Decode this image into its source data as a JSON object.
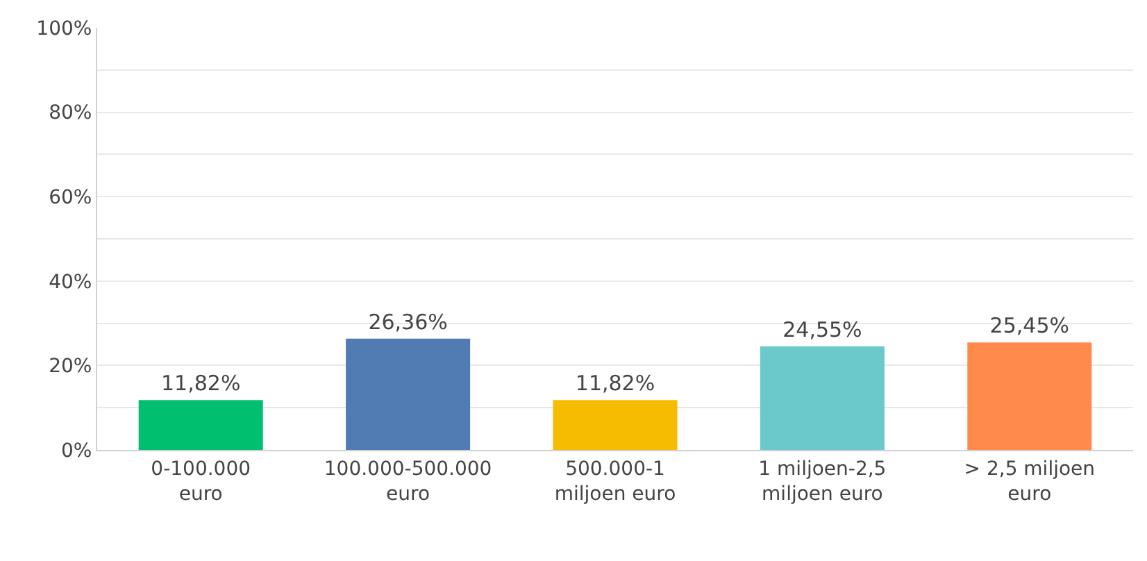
{
  "chart_data": {
    "type": "bar",
    "categories": [
      "0-100.000 euro",
      "100.000-500.000 euro",
      "500.000-1 miljoen euro",
      "1 miljoen-2,5 miljoen euro",
      "> 2,5 miljoen euro"
    ],
    "values": [
      11.82,
      26.36,
      11.82,
      24.55,
      25.45
    ],
    "colors": [
      "#00bf6f",
      "#507bb3",
      "#f6bd00",
      "#6bc8cb",
      "#ff8a4c"
    ],
    "value_labels": [
      "11,82%",
      "26,36%",
      "11,82%",
      "24,55%",
      "25,45%"
    ],
    "ylim": [
      0,
      100
    ],
    "yticks": [
      {
        "value": 0,
        "label": "0%"
      },
      {
        "value": 10,
        "label": null
      },
      {
        "value": 20,
        "label": "20%"
      },
      {
        "value": 30,
        "label": null
      },
      {
        "value": 40,
        "label": "40%"
      },
      {
        "value": 50,
        "label": null
      },
      {
        "value": 60,
        "label": "60%"
      },
      {
        "value": 70,
        "label": null
      },
      {
        "value": 80,
        "label": "80%"
      },
      {
        "value": 90,
        "label": null
      },
      {
        "value": 100,
        "label": "100%"
      }
    ],
    "grid": "y"
  }
}
